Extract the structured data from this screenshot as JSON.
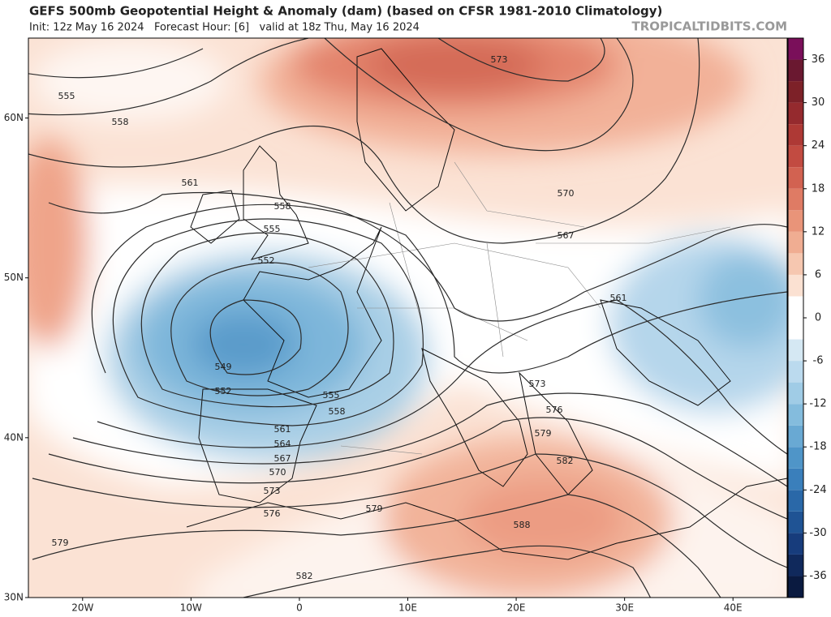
{
  "header": {
    "title": "GEFS 500mb Geopotential Height & Anomaly (dam) (based on CFSR 1981-2010 Climatology)",
    "subtitle": "Init: 12z May 16 2024   Forecast Hour: [6]   valid at 18z Thu, May 16 2024",
    "site": "TROPICALTIDBITS.COM"
  },
  "map": {
    "xlim": [
      -25,
      45
    ],
    "ylim": [
      30,
      65
    ],
    "xticks": [
      {
        "value": -20,
        "label": "20W"
      },
      {
        "value": -10,
        "label": "10W"
      },
      0,
      {
        "value": 10,
        "label": "10E"
      },
      {
        "value": 20,
        "label": "20E"
      },
      {
        "value": 30,
        "label": "30E"
      },
      {
        "value": 40,
        "label": "40E"
      }
    ],
    "yticks": [
      {
        "value": 30,
        "label": "30N"
      },
      {
        "value": 40,
        "label": "40N"
      },
      {
        "value": 50,
        "label": "50N"
      },
      {
        "value": 60,
        "label": "60N"
      }
    ],
    "contour_labels": [
      573,
      555,
      558,
      561,
      558,
      555,
      552,
      570,
      567,
      561,
      549,
      552,
      555,
      558,
      561,
      564,
      567,
      570,
      573,
      576,
      579,
      579,
      582,
      588,
      573,
      576,
      579,
      582
    ]
  },
  "colorbar": {
    "lim": [
      -39,
      39
    ],
    "ticks": [
      -36,
      -30,
      -24,
      -18,
      -12,
      -6,
      0,
      6,
      12,
      18,
      24,
      30,
      36
    ],
    "colors": [
      "#0a1a40",
      "#10295c",
      "#173c7c",
      "#1f5394",
      "#2a68a8",
      "#3a7fbb",
      "#4f95c8",
      "#69a9d3",
      "#84bcdd",
      "#a0cce6",
      "#bbdaee",
      "#d5e8f3",
      "#ffffff",
      "#ffffff",
      "#fbe1d2",
      "#f6c7b0",
      "#f0ad92",
      "#e99479",
      "#df7b64",
      "#d26251",
      "#c24b41",
      "#ae3935",
      "#952a2e",
      "#7d2128",
      "#6a1830",
      "#7a0f5a"
    ]
  }
}
